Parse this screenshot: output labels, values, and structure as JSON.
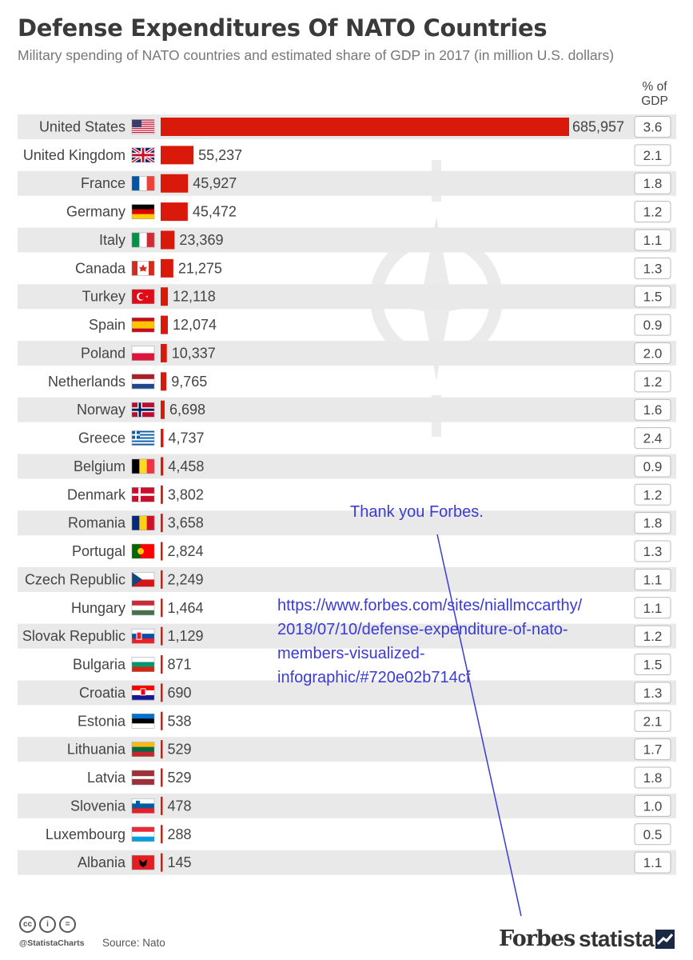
{
  "title": "Defense Expenditures Of NATO Countries",
  "subtitle": "Military spending of NATO countries and estimated share of GDP in 2017 (in million U.S. dollars)",
  "gdp_header": [
    "% of",
    "GDP"
  ],
  "colors": {
    "bar": "#d91a0a",
    "row_band": "#e9e9e9",
    "annotation": "#3a3ad6"
  },
  "chart_data": {
    "type": "bar",
    "orientation": "horizontal",
    "categories": [
      "United States",
      "United Kingdom",
      "France",
      "Germany",
      "Italy",
      "Canada",
      "Turkey",
      "Spain",
      "Poland",
      "Netherlands",
      "Norway",
      "Greece",
      "Belgium",
      "Denmark",
      "Romania",
      "Portugal",
      "Czech Republic",
      "Hungary",
      "Slovak Republic",
      "Bulgaria",
      "Croatia",
      "Estonia",
      "Lithuania",
      "Latvia",
      "Slovenia",
      "Luxembourg",
      "Albania"
    ],
    "series": [
      {
        "values": [
          685957,
          55237,
          45927,
          45472,
          23369,
          21275,
          12118,
          12074,
          10337,
          9765,
          6698,
          4737,
          4458,
          3802,
          3658,
          2824,
          2249,
          1464,
          1129,
          871,
          690,
          538,
          529,
          529,
          478,
          288,
          145
        ],
        "labels": [
          "685,957",
          "55,237",
          "45,927",
          "45,472",
          "23,369",
          "21,275",
          "12,118",
          "12,074",
          "10,337",
          "9,765",
          "6,698",
          "4,737",
          "4,458",
          "3,802",
          "3,658",
          "2,824",
          "2,249",
          "1,464",
          "1,129",
          "871",
          "690",
          "538",
          "529",
          "529",
          "478",
          "288",
          "145"
        ]
      }
    ],
    "gdp_share": [
      "3.6",
      "2.1",
      "1.8",
      "1.2",
      "1.1",
      "1.3",
      "1.5",
      "0.9",
      "2.0",
      "1.2",
      "1.6",
      "2.4",
      "0.9",
      "1.2",
      "1.8",
      "1.3",
      "1.1",
      "1.1",
      "1.2",
      "1.5",
      "1.3",
      "2.1",
      "1.7",
      "1.8",
      "1.0",
      "0.5",
      "1.1"
    ],
    "flags": [
      "us",
      "uk",
      "fr",
      "de",
      "it",
      "ca",
      "tr",
      "es",
      "pl",
      "nl",
      "no",
      "gr",
      "be",
      "dk",
      "ro",
      "pt",
      "cz",
      "hu",
      "sk",
      "bg",
      "hr",
      "ee",
      "lt",
      "lv",
      "si",
      "lu",
      "al"
    ],
    "xlim": [
      0,
      685957
    ]
  },
  "annotation": {
    "thanks": "Thank you Forbes.",
    "url_lines": [
      "https://www.forbes.com/sites/niallmccarthy/",
      "2018/07/10/defense-expenditure-of-nato-",
      "members-visualized-",
      "infographic/#720e02b714cf"
    ]
  },
  "footer": {
    "cc_icons": [
      "cc",
      "i",
      "="
    ],
    "handle": "@StatistaCharts",
    "source": "Source: Nato",
    "logo_forbes": "Forbes",
    "logo_statista": "statista"
  }
}
